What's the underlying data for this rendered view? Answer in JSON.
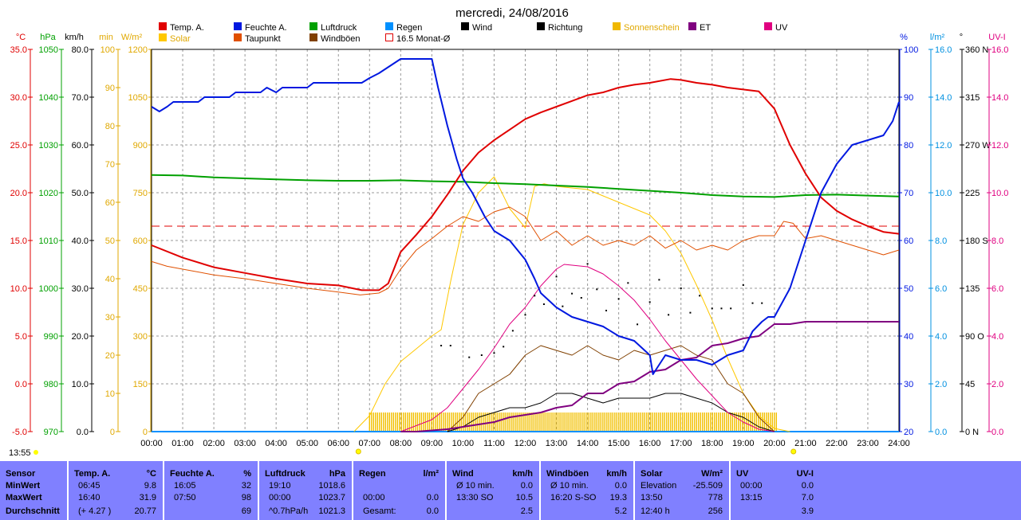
{
  "title": "mercredi, 24/08/2016",
  "time_label": "13:55",
  "legend": [
    {
      "label": "Temp. A.",
      "color": "#e00000",
      "type": "fill"
    },
    {
      "label": "Feuchte A.",
      "color": "#0018e0",
      "type": "fill"
    },
    {
      "label": "Luftdruck",
      "color": "#00a000",
      "type": "fill"
    },
    {
      "label": "Regen",
      "color": "#0090ff",
      "type": "fill"
    },
    {
      "label": "Wind",
      "color": "#000000",
      "type": "fill"
    },
    {
      "label": "Richtung",
      "color": "#000000",
      "type": "fill"
    },
    {
      "label": "Sonnenschein",
      "color": "#f0b800",
      "type": "fill"
    },
    {
      "label": "ET",
      "color": "#800080",
      "type": "fill"
    },
    {
      "label": "UV",
      "color": "#e00080",
      "type": "fill"
    },
    {
      "label": "Solar",
      "color": "#ffc800",
      "type": "fill"
    },
    {
      "label": "Taupunkt",
      "color": "#e05000",
      "type": "fill"
    },
    {
      "label": "Windböen",
      "color": "#804000",
      "type": "fill"
    },
    {
      "label": "16.5 Monat-Ø",
      "color": "#e00000",
      "type": "outline"
    }
  ],
  "axis_units": {
    "temp": "°C",
    "pressure": "hPa",
    "wind": "km/h",
    "sun": "min",
    "solar": "W/m²",
    "humidity": "%",
    "rain": "l/m²",
    "direction": "°",
    "uv": "UV-I"
  },
  "axis_ticks": {
    "temp": [
      "35.0",
      "30.0",
      "25.0",
      "20.0",
      "15.0",
      "10.0",
      "5.0",
      "0.0",
      "-5.0"
    ],
    "pressure": [
      "1050",
      "1040",
      "1030",
      "1020",
      "1010",
      "1000",
      "990",
      "980",
      "970"
    ],
    "wind": [
      "80.0",
      "70.0",
      "60.0",
      "50.0",
      "40.0",
      "30.0",
      "20.0",
      "10.0",
      "0.0"
    ],
    "sun": [
      "100",
      "90",
      "80",
      "70",
      "60",
      "50",
      "40",
      "30",
      "20",
      "10",
      "0"
    ],
    "solar": [
      "1200",
      "1050",
      "900",
      "750",
      "600",
      "450",
      "300",
      "150",
      "0"
    ],
    "humidity": [
      "100",
      "90",
      "80",
      "70",
      "60",
      "50",
      "40",
      "30",
      "20"
    ],
    "rain": [
      "16.0",
      "14.0",
      "12.0",
      "10.0",
      "8.0",
      "6.0",
      "4.0",
      "2.0",
      "0.0"
    ],
    "direction": [
      "360 N",
      "315",
      "270 W",
      "225",
      "180 S",
      "135",
      "90  O",
      "45",
      "0   N"
    ],
    "uv": [
      "16.0",
      "14.0",
      "12.0",
      "10.0",
      "8.0",
      "6.0",
      "4.0",
      "2.0",
      "0.0"
    ]
  },
  "chart_data": {
    "type": "line",
    "x_labels": [
      "00:00",
      "01:00",
      "02:00",
      "03:00",
      "04:00",
      "05:00",
      "06:00",
      "07:00",
      "08:00",
      "09:00",
      "10:00",
      "11:00",
      "12:00",
      "13:00",
      "14:00",
      "15:00",
      "16:00",
      "17:00",
      "18:00",
      "19:00",
      "20:00",
      "21:00",
      "22:00",
      "23:00",
      "24:00"
    ],
    "x_unit": "hours",
    "reference_line": {
      "name": "16.5 Monat-Ø",
      "value": 16.5,
      "unit": "°C"
    },
    "series": [
      {
        "name": "Temp. A.",
        "axis": "temp",
        "color": "#e00000",
        "width": 2,
        "x": [
          0,
          1,
          2,
          3,
          4,
          5,
          6,
          6.75,
          7.3,
          7.6,
          8,
          8.5,
          9,
          9.5,
          10,
          10.5,
          11,
          11.5,
          12,
          12.5,
          13,
          13.5,
          14,
          14.5,
          15,
          15.5,
          16,
          16.67,
          17,
          17.5,
          18,
          18.5,
          19,
          19.5,
          20,
          20.5,
          21,
          21.5,
          22,
          22.5,
          23,
          23.5,
          24
        ],
        "y": [
          14.5,
          13.2,
          12.2,
          11.6,
          11.0,
          10.5,
          10.3,
          9.8,
          9.8,
          10.5,
          13.8,
          15.6,
          17.5,
          19.8,
          22.3,
          24.2,
          25.5,
          26.6,
          27.7,
          28.4,
          29.0,
          29.6,
          30.2,
          30.5,
          31.0,
          31.3,
          31.5,
          31.9,
          31.8,
          31.5,
          31.3,
          31.0,
          30.8,
          30.6,
          28.8,
          25.0,
          22.0,
          19.5,
          18.1,
          17.2,
          16.5,
          15.9,
          15.7
        ]
      },
      {
        "name": "Taupunkt",
        "axis": "temp",
        "color": "#e05000",
        "width": 1,
        "x": [
          0,
          0.5,
          1,
          2,
          3,
          4,
          5,
          6,
          6.7,
          7.3,
          7.6,
          8,
          8.5,
          9,
          9.5,
          10,
          10.5,
          11,
          11.5,
          12,
          12.5,
          13,
          13.5,
          14,
          14.5,
          15,
          15.5,
          16,
          16.5,
          17,
          17.5,
          18,
          18.5,
          19,
          19.5,
          20,
          20.3,
          20.6,
          21,
          21.5,
          22,
          22.5,
          23,
          23.5,
          24
        ],
        "y": [
          12.8,
          12.3,
          12.0,
          11.4,
          11.0,
          10.5,
          10.0,
          9.6,
          9.3,
          9.5,
          10.0,
          12.0,
          14.0,
          15.2,
          16.5,
          17.5,
          17.0,
          18.0,
          18.5,
          17.5,
          15.0,
          16.0,
          14.5,
          15.5,
          14.5,
          15.0,
          14.5,
          15.5,
          14.2,
          15.0,
          14.0,
          14.5,
          14.0,
          15.0,
          15.5,
          15.5,
          17.0,
          16.8,
          15.2,
          15.5,
          15.0,
          14.5,
          14.0,
          13.5,
          14.0
        ]
      },
      {
        "name": "Feuchte A.",
        "axis": "humidity",
        "color": "#0018e0",
        "width": 2,
        "x": [
          0,
          0.25,
          0.5,
          0.7,
          1.5,
          1.7,
          2.5,
          2.7,
          3.5,
          3.7,
          4.0,
          4.2,
          5.0,
          5.2,
          6.5,
          6.75,
          7,
          7.3,
          8,
          8.5,
          9,
          9.2,
          9.5,
          9.8,
          10,
          10.3,
          10.7,
          11,
          11.5,
          12,
          12.3,
          12.5,
          13,
          13.5,
          14,
          14.5,
          15,
          15.5,
          16,
          16.1,
          16.5,
          17,
          17.5,
          18,
          18.5,
          19,
          19.3,
          19.6,
          19.8,
          20,
          20.5,
          21,
          21.5,
          22,
          22.5,
          23,
          23.5,
          23.8,
          24
        ],
        "y": [
          88,
          87,
          88,
          89,
          89,
          90,
          90,
          91,
          91,
          92,
          91,
          92,
          92,
          93,
          93,
          93,
          94,
          95,
          98,
          98,
          98,
          92,
          84,
          77,
          73,
          70,
          65,
          62,
          60,
          56,
          52,
          49,
          46,
          44,
          43,
          42,
          40,
          39,
          36,
          32,
          36,
          35,
          35,
          34,
          36,
          37,
          41,
          43,
          44,
          44,
          50,
          60,
          70,
          76,
          80,
          81,
          82,
          85,
          89
        ]
      },
      {
        "name": "Luftdruck",
        "axis": "pressure",
        "color": "#00a000",
        "width": 2,
        "x": [
          0,
          1,
          2,
          3,
          4,
          5,
          6,
          7,
          8,
          9,
          10,
          11,
          12,
          13,
          14,
          15,
          16,
          17,
          18,
          19,
          20,
          21,
          22,
          23,
          24
        ],
        "y": [
          1023.7,
          1023.6,
          1023.2,
          1023.0,
          1022.8,
          1022.6,
          1022.5,
          1022.5,
          1022.6,
          1022.4,
          1022.3,
          1022.0,
          1021.8,
          1021.5,
          1021.2,
          1020.8,
          1020.4,
          1020.0,
          1019.5,
          1019.2,
          1019.1,
          1019.5,
          1019.6,
          1019.4,
          1019.2
        ]
      },
      {
        "name": "Solar",
        "axis": "solar",
        "color": "#ffc800",
        "width": 1,
        "x": [
          6.5,
          7,
          7.5,
          8,
          8.5,
          9,
          9.3,
          9.6,
          10,
          10.5,
          11,
          11.5,
          12,
          12.3,
          12.6,
          13,
          13.5,
          14,
          14.5,
          15,
          15.5,
          16,
          16.5,
          17,
          17.5,
          18,
          18.5,
          19,
          19.5,
          20,
          20.5
        ],
        "y": [
          0,
          50,
          150,
          220,
          260,
          300,
          320,
          470,
          650,
          750,
          800,
          700,
          640,
          770,
          778,
          770,
          765,
          760,
          740,
          720,
          700,
          680,
          630,
          560,
          460,
          350,
          230,
          120,
          50,
          10,
          0
        ]
      },
      {
        "name": "Windböen",
        "axis": "wind",
        "color": "#804000",
        "width": 1,
        "x": [
          9.5,
          10,
          10.5,
          11,
          11.5,
          12,
          12.5,
          13,
          13.5,
          14,
          14.5,
          15,
          15.5,
          16,
          16.5,
          17,
          17.5,
          18,
          18.5,
          19,
          19.5,
          20
        ],
        "y": [
          0,
          3,
          8,
          10,
          12,
          16,
          18,
          17,
          16,
          18,
          16,
          15,
          17,
          16,
          17,
          18,
          16,
          15,
          10,
          8,
          3,
          0
        ]
      },
      {
        "name": "Wind",
        "axis": "wind",
        "color": "#000000",
        "width": 1,
        "x": [
          9.5,
          10,
          10.5,
          11,
          11.5,
          12,
          12.5,
          13,
          13.5,
          14,
          14.5,
          15,
          15.5,
          16,
          16.5,
          17,
          17.5,
          18,
          18.5,
          19,
          19.5,
          20
        ],
        "y": [
          0,
          1,
          3,
          4,
          5,
          5,
          6,
          8,
          8,
          7,
          6,
          7,
          7,
          7,
          8,
          8,
          7,
          6,
          4,
          3,
          1,
          0
        ]
      },
      {
        "name": "UV",
        "axis": "uv",
        "color": "#e00080",
        "width": 1,
        "x": [
          8,
          9,
          9.5,
          10,
          10.5,
          11,
          11.5,
          12,
          12.5,
          13,
          13.25,
          14,
          14.5,
          15,
          15.5,
          16,
          16.5,
          17,
          17.5,
          18,
          18.5,
          19,
          19.5,
          20
        ],
        "y": [
          0,
          0.5,
          1.0,
          1.8,
          2.6,
          3.5,
          4.5,
          5.2,
          6.1,
          6.8,
          7.0,
          6.9,
          6.6,
          6.1,
          5.5,
          4.7,
          3.8,
          3.0,
          2.2,
          1.5,
          0.8,
          0.4,
          0.1,
          0
        ]
      },
      {
        "name": "ET",
        "axis": "rain",
        "color": "#800080",
        "width": 2,
        "x": [
          8,
          8.5,
          9.5,
          10,
          10.5,
          11,
          11.5,
          12,
          12.5,
          13,
          13.5,
          14,
          14.5,
          15,
          15.5,
          16,
          16.5,
          17,
          17.5,
          18,
          18.5,
          19,
          19.5,
          20,
          20.5,
          21,
          22,
          23,
          24
        ],
        "y": [
          0,
          0,
          0.1,
          0.2,
          0.3,
          0.4,
          0.6,
          0.7,
          0.8,
          1.0,
          1.1,
          1.6,
          1.6,
          2.0,
          2.1,
          2.5,
          2.6,
          3.0,
          3.1,
          3.6,
          3.7,
          3.9,
          4.0,
          4.5,
          4.5,
          4.6,
          4.6,
          4.6,
          4.6
        ]
      }
    ],
    "direction_points": {
      "axis": "direction",
      "x": [
        9.3,
        9.6,
        10.2,
        10.6,
        11,
        11.3,
        11.6,
        12,
        12.3,
        12.6,
        13,
        13.2,
        13.5,
        13.8,
        14,
        14.3,
        14.6,
        15,
        15.3,
        15.6,
        16,
        16.3,
        16.6,
        17,
        17.3,
        17.6,
        18,
        18.3,
        18.6,
        19,
        19.3,
        19.6
      ],
      "y": [
        81,
        81,
        70,
        72,
        74,
        80,
        95,
        110,
        128,
        120,
        146,
        118,
        130,
        126,
        158,
        134,
        114,
        125,
        140,
        101,
        122,
        143,
        110,
        135,
        112,
        128,
        116,
        116,
        116,
        138,
        121,
        121
      ]
    },
    "sunshine_bar": {
      "axis": "sun",
      "from": 7.0,
      "to": 20.1,
      "value": 5
    }
  },
  "stats": {
    "columns": [
      {
        "title": "Sensor",
        "unit": "",
        "rows": [
          "MinWert",
          "MaxWert",
          "Durchschnitt"
        ]
      },
      {
        "title": "Temp. A.",
        "unit": "°C",
        "rows": [
          [
            "06:45",
            "9.8"
          ],
          [
            "16:40",
            "31.9"
          ],
          [
            "(+ 4.27 )",
            "20.77"
          ]
        ]
      },
      {
        "title": "Feuchte A.",
        "unit": "%",
        "rows": [
          [
            "16:05",
            "32"
          ],
          [
            "07:50",
            "98"
          ],
          [
            "",
            "69"
          ]
        ]
      },
      {
        "title": "Luftdruck",
        "unit": "hPa",
        "rows": [
          [
            "19:10",
            "1018.6"
          ],
          [
            "00:00",
            "1023.7"
          ],
          [
            "^0.7hPa/h",
            "1021.3"
          ]
        ]
      },
      {
        "title": "Regen",
        "unit": "l/m²",
        "rows": [
          [
            "",
            ""
          ],
          [
            "00:00",
            "0.0"
          ],
          [
            "Gesamt:",
            "0.0"
          ]
        ]
      },
      {
        "title": "Wind",
        "unit": "km/h",
        "rows": [
          [
            "Ø 10 min.",
            "0.0"
          ],
          [
            "13:30   SO",
            "10.5"
          ],
          [
            "",
            "2.5"
          ]
        ]
      },
      {
        "title": "Windböen",
        "unit": "km/h",
        "rows": [
          [
            "Ø 10 min.",
            "0.0"
          ],
          [
            "16:20   S-SO",
            "19.3"
          ],
          [
            "",
            "5.2"
          ]
        ]
      },
      {
        "title": "Solar",
        "unit": "W/m²",
        "rows": [
          [
            "Elevation",
            "-25.509"
          ],
          [
            "13:50",
            "778"
          ],
          [
            "12:40 h",
            "256"
          ]
        ]
      },
      {
        "title": "UV",
        "unit": "UV-I",
        "rows": [
          [
            "00:00",
            "0.0"
          ],
          [
            "13:15",
            "7.0"
          ],
          [
            "",
            "3.9"
          ]
        ]
      }
    ]
  }
}
